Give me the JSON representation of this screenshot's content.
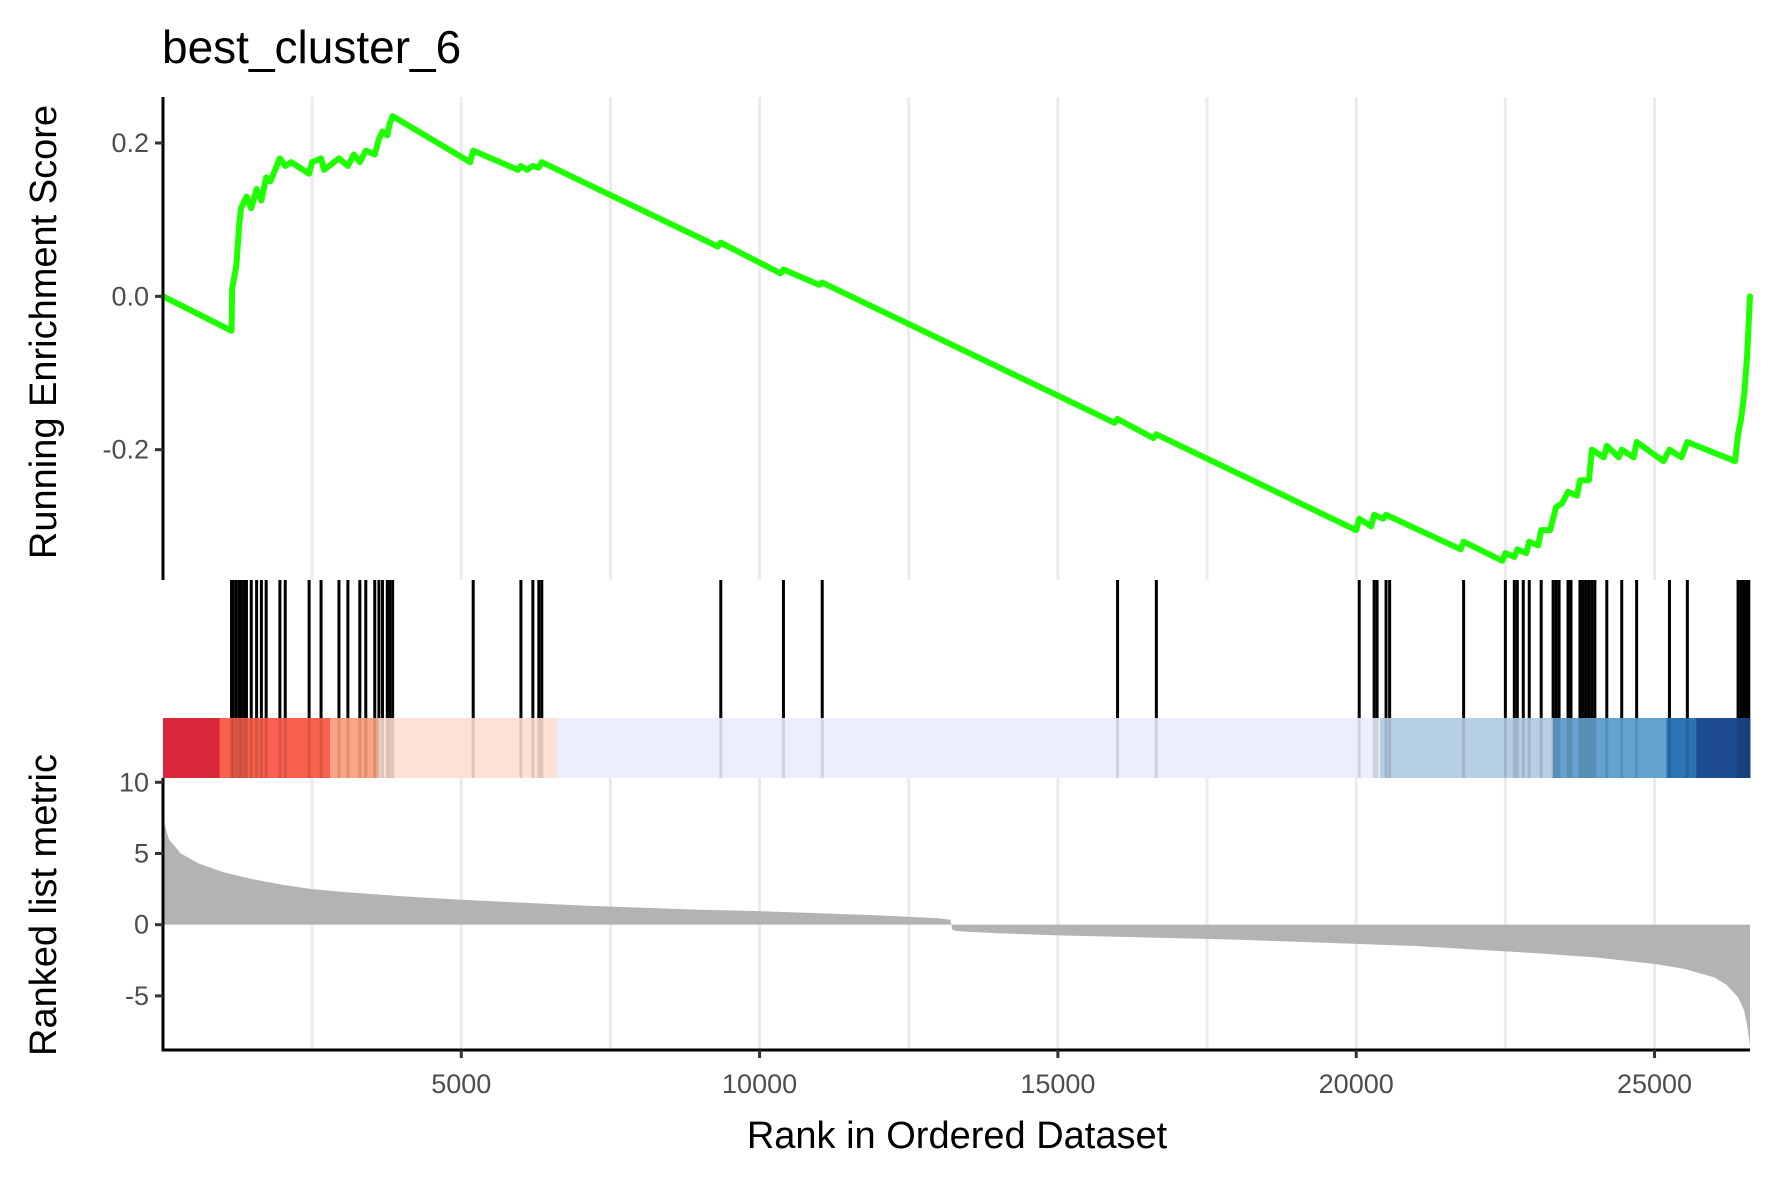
{
  "chart_data": {
    "type": "line",
    "title": "best_cluster_6",
    "xlabel": "Rank in Ordered Dataset",
    "xlim": [
      1,
      26600
    ],
    "x_ticks": [
      5000,
      10000,
      15000,
      20000,
      25000
    ],
    "x_tick_labels": [
      "5000",
      "10000",
      "15000",
      "20000",
      "25000"
    ],
    "minor_x_grid": [
      2500,
      7500,
      12500,
      17500,
      22500
    ],
    "grid": "vertical",
    "colors": {
      "running_score": "#1EFF00",
      "hits": "#000000",
      "ranked_fill": "#B3B3B3",
      "grid": "#EBEBEB"
    },
    "enrichment_panel": {
      "ylabel": "Running Enrichment Score",
      "ylim": [
        -0.37,
        0.26
      ],
      "y_ticks": [
        0.2,
        0.0,
        -0.2
      ],
      "y_tick_labels": [
        "0.2",
        "0.0",
        "-0.2"
      ],
      "series": [
        {
          "x": [
            1,
            1150,
            1160,
            1230,
            1280,
            1310,
            1400,
            1480,
            1570,
            1650,
            1730,
            1800,
            1960,
            2050,
            2150,
            2450,
            2500,
            2650,
            2700,
            2950,
            3100,
            3200,
            3300,
            3400,
            3550,
            3620,
            3680,
            3760,
            3800,
            3850,
            5150,
            5200,
            5950,
            6000,
            6100,
            6200,
            6300,
            6350,
            9300,
            9350,
            10350,
            10400,
            11000,
            11050,
            15950,
            16000,
            16600,
            16650,
            20000,
            20050,
            20250,
            20300,
            20450,
            20500,
            21750,
            21800,
            22450,
            22500,
            22650,
            22700,
            22850,
            22900,
            23050,
            23100,
            23250,
            23350,
            23450,
            23550,
            23700,
            23750,
            23900,
            23950,
            24150,
            24200,
            24400,
            24450,
            24650,
            24700,
            25150,
            25250,
            25450,
            25550,
            26350,
            26400,
            26450,
            26500,
            26550,
            26600
          ],
          "y": [
            0.0,
            -0.045,
            0.01,
            0.04,
            0.095,
            0.115,
            0.13,
            0.115,
            0.14,
            0.125,
            0.155,
            0.15,
            0.18,
            0.17,
            0.175,
            0.16,
            0.175,
            0.18,
            0.165,
            0.18,
            0.17,
            0.185,
            0.175,
            0.19,
            0.185,
            0.205,
            0.215,
            0.21,
            0.225,
            0.235,
            0.175,
            0.19,
            0.165,
            0.17,
            0.165,
            0.17,
            0.168,
            0.175,
            0.065,
            0.07,
            0.03,
            0.035,
            0.015,
            0.018,
            -0.165,
            -0.16,
            -0.185,
            -0.18,
            -0.305,
            -0.29,
            -0.3,
            -0.285,
            -0.29,
            -0.285,
            -0.33,
            -0.32,
            -0.345,
            -0.335,
            -0.34,
            -0.33,
            -0.335,
            -0.32,
            -0.325,
            -0.305,
            -0.305,
            -0.275,
            -0.27,
            -0.255,
            -0.26,
            -0.24,
            -0.24,
            -0.2,
            -0.21,
            -0.195,
            -0.21,
            -0.2,
            -0.21,
            -0.19,
            -0.215,
            -0.2,
            -0.21,
            -0.19,
            -0.215,
            -0.18,
            -0.16,
            -0.13,
            -0.08,
            0.0
          ]
        }
      ]
    },
    "hit_positions": [
      1150,
      1180,
      1230,
      1280,
      1310,
      1360,
      1400,
      1480,
      1570,
      1650,
      1730,
      1960,
      2050,
      2450,
      2650,
      2950,
      3100,
      3300,
      3400,
      3550,
      3620,
      3680,
      3760,
      3800,
      3850,
      5200,
      6000,
      6200,
      6300,
      6350,
      9350,
      10400,
      11050,
      16000,
      16650,
      20050,
      20300,
      20350,
      20500,
      20560,
      21800,
      22500,
      22650,
      22700,
      22800,
      22900,
      23100,
      23300,
      23350,
      23400,
      23550,
      23600,
      23750,
      23800,
      23850,
      23900,
      23950,
      24000,
      24200,
      24450,
      24700,
      25250,
      25550,
      26400,
      26450,
      26500,
      26550,
      26580
    ],
    "rank_color_bands": [
      {
        "x0": 1,
        "x1": 950,
        "color": "#D8283A"
      },
      {
        "x0": 950,
        "x1": 2800,
        "color": "#F9604E"
      },
      {
        "x0": 2800,
        "x1": 3600,
        "color": "#FCA385"
      },
      {
        "x0": 3600,
        "x1": 6600,
        "color": "#FDE1D6"
      },
      {
        "x0": 6600,
        "x1": 20400,
        "color": "#EBEFFC"
      },
      {
        "x0": 20400,
        "x1": 23300,
        "color": "#B7CFE4"
      },
      {
        "x0": 23300,
        "x1": 25200,
        "color": "#63A3D0"
      },
      {
        "x0": 25200,
        "x1": 25700,
        "color": "#2D74B5"
      },
      {
        "x0": 25700,
        "x1": 26600,
        "color": "#1E4B8F"
      }
    ],
    "ranked_panel": {
      "ylabel": "Ranked list metric",
      "ylim": [
        -8.8,
        10.3
      ],
      "y_ticks": [
        10,
        5,
        0,
        -5
      ],
      "y_tick_labels": [
        "10",
        "5",
        "0",
        "-5"
      ],
      "metric": {
        "x": [
          1,
          30,
          100,
          300,
          600,
          1000,
          1500,
          2000,
          2500,
          3000,
          4000,
          5000,
          6000,
          7000,
          8000,
          9000,
          10000,
          11000,
          12000,
          13000,
          13200,
          13230,
          13300,
          14000,
          15000,
          16000,
          17000,
          18000,
          19000,
          20000,
          21000,
          22000,
          23000,
          24000,
          25000,
          25500,
          26000,
          26200,
          26400,
          26500,
          26550,
          26600
        ],
        "y": [
          8.0,
          7.0,
          6.0,
          5.0,
          4.3,
          3.7,
          3.2,
          2.8,
          2.5,
          2.3,
          2.0,
          1.75,
          1.55,
          1.35,
          1.2,
          1.05,
          0.95,
          0.8,
          0.65,
          0.45,
          0.35,
          -0.35,
          -0.45,
          -0.6,
          -0.75,
          -0.85,
          -0.95,
          -1.05,
          -1.2,
          -1.35,
          -1.5,
          -1.75,
          -2.0,
          -2.3,
          -2.75,
          -3.1,
          -3.7,
          -4.2,
          -5.1,
          -6.0,
          -7.0,
          -8.5
        ]
      }
    }
  }
}
